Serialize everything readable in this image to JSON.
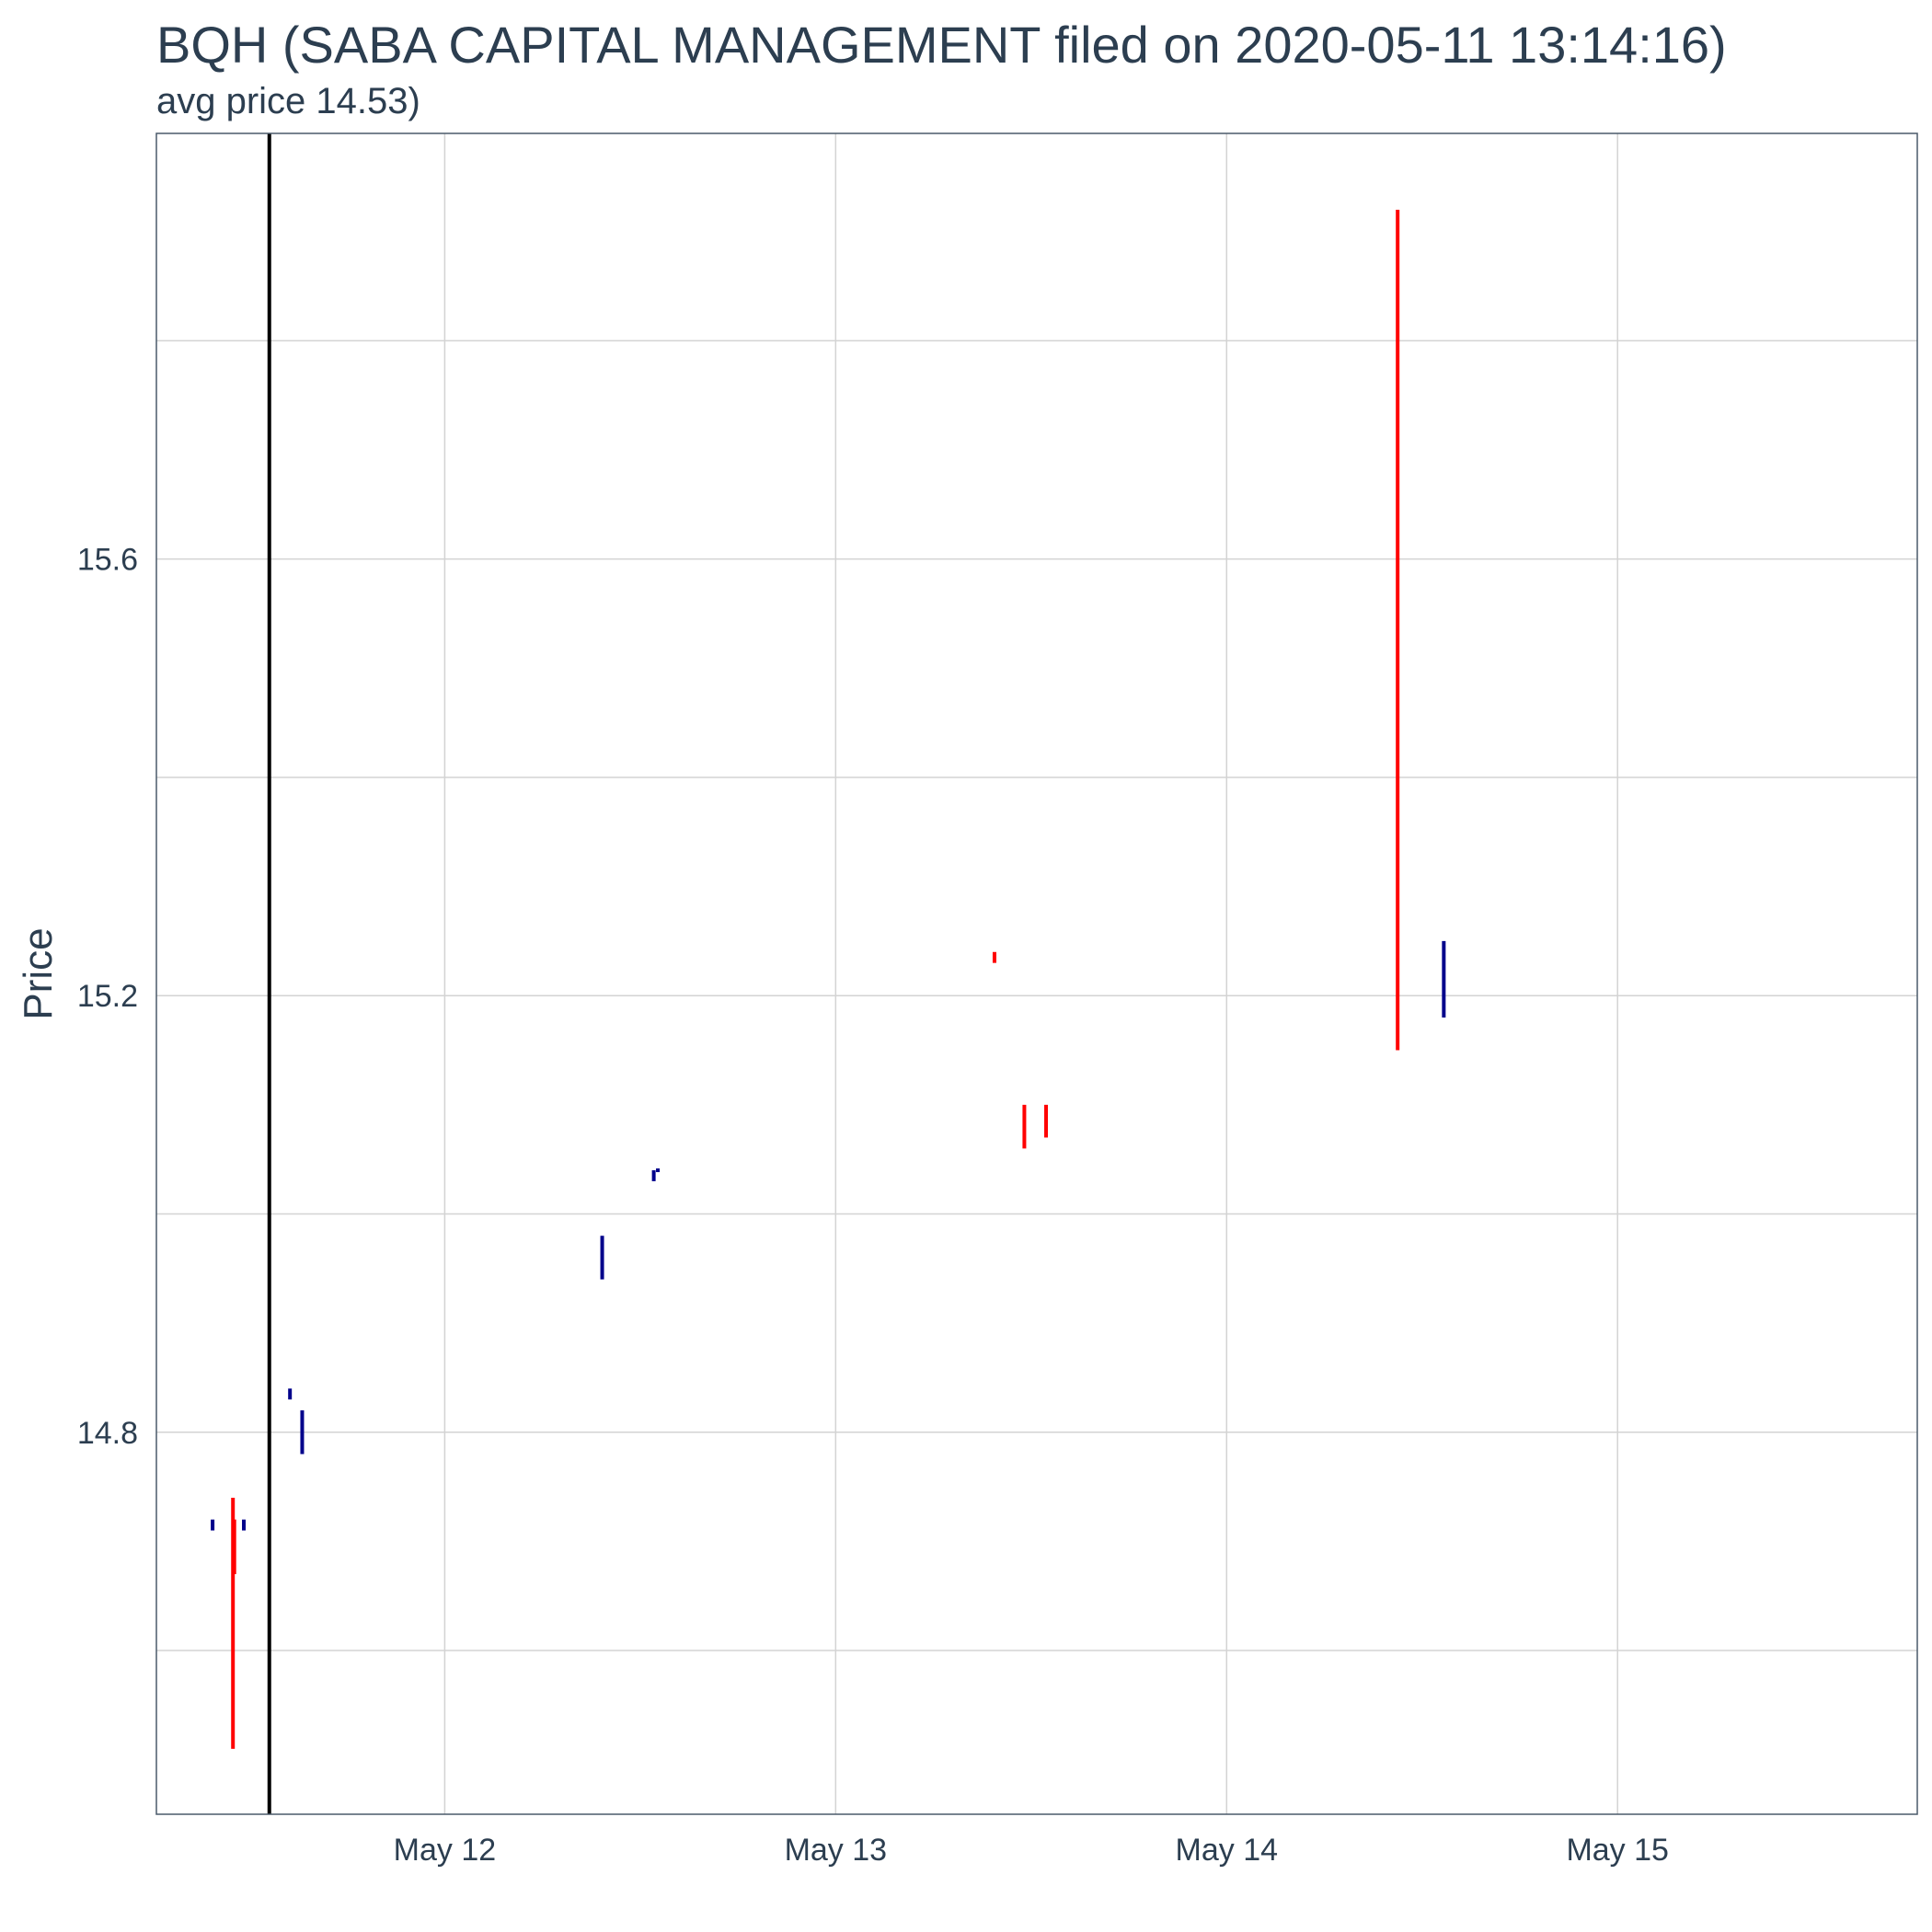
{
  "chart_data": {
    "type": "ohlc",
    "title": "BQH (SABA CAPITAL MANAGEMENT filed on 2020-05-11 13:14:16)",
    "subtitle": "avg price 14.53)",
    "xlabel": "",
    "ylabel": "Price",
    "x_tick_labels": [
      "May 12",
      "May 13",
      "May 14",
      "May 15"
    ],
    "x_ticks": [
      "2020-05-12",
      "2020-05-13",
      "2020-05-14",
      "2020-05-15"
    ],
    "y_tick_labels": [
      "14.8",
      "15.2",
      "15.6"
    ],
    "y_ticks": [
      14.8,
      15.2,
      15.6
    ],
    "xlim": [
      "2020-05-11 06:18",
      "2020-05-15 18:24"
    ],
    "ylim": [
      14.45,
      15.99
    ],
    "grid": true,
    "filing_marker": "2020-05-11 13:14:16",
    "colors": {
      "up": "#00008b",
      "down": "#ff0000",
      "marker": "#000000",
      "grid": "#d3d3d3",
      "text": "#2c3e50"
    },
    "candles": [
      {
        "t": "2020-05-11 09:45",
        "low": 14.71,
        "high": 14.72,
        "dir": "up"
      },
      {
        "t": "2020-05-11 11:00",
        "low": 14.51,
        "high": 14.74,
        "dir": "down"
      },
      {
        "t": "2020-05-11 11:05",
        "low": 14.67,
        "high": 14.72,
        "dir": "down"
      },
      {
        "t": "2020-05-11 11:40",
        "low": 14.71,
        "high": 14.72,
        "dir": "up"
      },
      {
        "t": "2020-05-11 14:30",
        "low": 14.83,
        "high": 14.84,
        "dir": "up"
      },
      {
        "t": "2020-05-11 15:15",
        "low": 14.78,
        "high": 14.82,
        "dir": "up"
      },
      {
        "t": "2020-05-12 09:40",
        "low": 14.94,
        "high": 14.98,
        "dir": "up"
      },
      {
        "t": "2020-05-12 12:50",
        "low": 15.03,
        "high": 15.04,
        "dir": "up"
      },
      {
        "t": "2020-05-12 13:05",
        "low": 15.04,
        "high": 15.04,
        "dir": "up"
      },
      {
        "t": "2020-05-13 09:45",
        "low": 15.23,
        "high": 15.24,
        "dir": "down"
      },
      {
        "t": "2020-05-13 11:35",
        "low": 15.06,
        "high": 15.1,
        "dir": "down"
      },
      {
        "t": "2020-05-13 12:55",
        "low": 15.07,
        "high": 15.1,
        "dir": "down"
      },
      {
        "t": "2020-05-14 10:30",
        "low": 15.15,
        "high": 15.92,
        "dir": "down"
      },
      {
        "t": "2020-05-14 13:20",
        "low": 15.18,
        "high": 15.25,
        "dir": "up"
      }
    ]
  }
}
